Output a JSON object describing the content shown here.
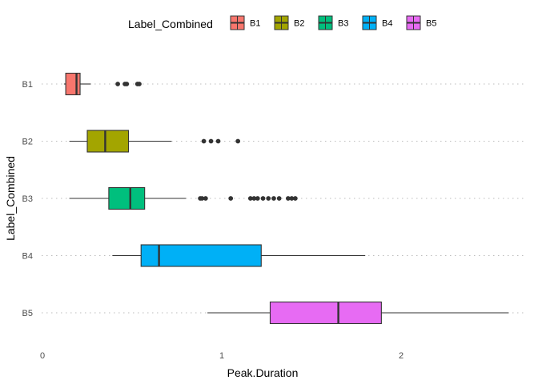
{
  "chart_data": {
    "type": "boxplot",
    "orientation": "horizontal",
    "xlabel": "Peak.Duration",
    "ylabel": "Label_Combined",
    "xlim": [
      -0.01,
      2.65
    ],
    "x_ticks": [
      0,
      1,
      2
    ],
    "grid": "dotted horizontal major lines only",
    "legend": {
      "title": "Label_Combined",
      "position": "top",
      "entries": [
        "B1",
        "B2",
        "B3",
        "B4",
        "B5"
      ]
    },
    "categories": [
      "B1",
      "B2",
      "B3",
      "B4",
      "B5"
    ],
    "series": [
      {
        "label": "B1",
        "color": "#F8766D",
        "whisker_low": 0.12,
        "q1": 0.13,
        "median": 0.19,
        "q3": 0.21,
        "whisker_high": 0.27,
        "outliers": [
          0.42,
          0.46,
          0.47,
          0.53,
          0.54
        ]
      },
      {
        "label": "B2",
        "color": "#A3A500",
        "whisker_low": 0.15,
        "q1": 0.25,
        "median": 0.35,
        "q3": 0.48,
        "whisker_high": 0.72,
        "outliers": [
          0.9,
          0.94,
          0.98,
          1.09
        ]
      },
      {
        "label": "B3",
        "color": "#00BF7D",
        "whisker_low": 0.15,
        "q1": 0.37,
        "median": 0.49,
        "q3": 0.57,
        "whisker_high": 0.8,
        "outliers": [
          0.88,
          0.89,
          0.91,
          1.05,
          1.16,
          1.18,
          1.2,
          1.23,
          1.26,
          1.29,
          1.32,
          1.37,
          1.39,
          1.41
        ]
      },
      {
        "label": "B4",
        "color": "#00B0F6",
        "whisker_low": 0.39,
        "q1": 0.55,
        "median": 0.65,
        "q3": 1.22,
        "whisker_high": 1.8,
        "outliers": []
      },
      {
        "label": "B5",
        "color": "#E76BF3",
        "whisker_low": 0.92,
        "q1": 1.27,
        "median": 1.65,
        "q3": 1.89,
        "whisker_high": 2.6,
        "outliers": []
      }
    ]
  }
}
